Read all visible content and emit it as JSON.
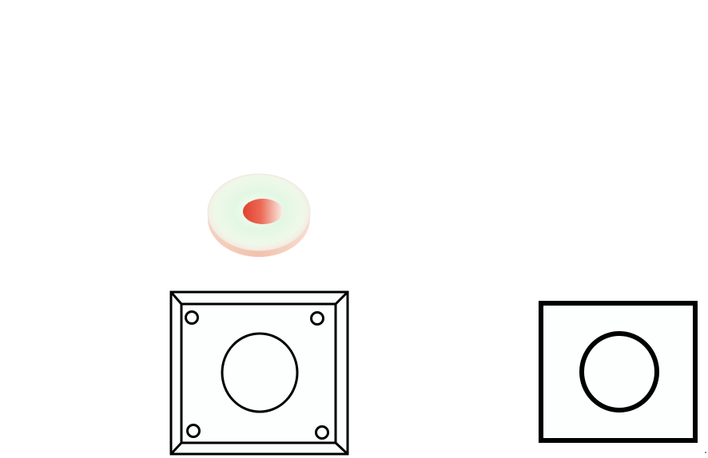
{
  "diagram": {
    "background_color": "#ffffff",
    "stroke_color": "#000000",
    "washer_ring_color": "#e3f7e3",
    "washer_edge_color": "#f2c9b8",
    "washer_hole_color": "#e0412f",
    "components": [
      {
        "id": "washer",
        "view": "3d",
        "shape": "ring",
        "icon": "washer-icon"
      },
      {
        "id": "flange-plate",
        "view": "front",
        "shape": "square-plate",
        "center_hole": true,
        "mounting_holes": 4
      },
      {
        "id": "simple-plate",
        "view": "front",
        "shape": "rectangular-plate",
        "center_hole": true,
        "mounting_holes": 0
      }
    ]
  }
}
